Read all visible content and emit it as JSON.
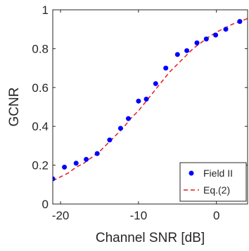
{
  "chart_data": {
    "type": "scatter",
    "xlabel": "Channel SNR [dB]",
    "ylabel": "GCNR",
    "xlim": [
      -21,
      4
    ],
    "ylim": [
      0,
      1
    ],
    "x_ticks": [
      -20,
      -10,
      0
    ],
    "x_tick_labels": [
      "-20",
      "-10",
      "0"
    ],
    "y_ticks": [
      0,
      0.2,
      0.4,
      0.6,
      0.8,
      1
    ],
    "y_tick_labels": [
      "0",
      "0.2",
      "0.4",
      "0.6",
      "0.8",
      "1"
    ],
    "grid": false,
    "legend_position": "bottom-right",
    "colors": {
      "field2": "#0000ff",
      "eq2": "#e41a1c"
    },
    "series": [
      {
        "name": "Field II",
        "style": "markers",
        "x": [
          -21,
          -19.5,
          -18,
          -16.7,
          -15.3,
          -13.7,
          -12.3,
          -11.3,
          -10,
          -9,
          -7.8,
          -6.5,
          -5,
          -3.8,
          -2.5,
          -1.3,
          -0.1,
          1.2,
          3
        ],
        "y": [
          0.13,
          0.19,
          0.21,
          0.23,
          0.26,
          0.33,
          0.39,
          0.44,
          0.53,
          0.54,
          0.62,
          0.7,
          0.77,
          0.79,
          0.83,
          0.85,
          0.87,
          0.9,
          0.94
        ]
      },
      {
        "name": "Eq.(2)",
        "style": "dashed-line",
        "x": [
          -21,
          -20,
          -19,
          -18,
          -17,
          -16,
          -15,
          -14,
          -13,
          -12,
          -11,
          -10,
          -9,
          -8,
          -7,
          -6,
          -5,
          -4,
          -3,
          -2,
          -1,
          0,
          1,
          2,
          3,
          4
        ],
        "y": [
          0.12,
          0.14,
          0.16,
          0.19,
          0.21,
          0.24,
          0.27,
          0.31,
          0.35,
          0.39,
          0.44,
          0.48,
          0.53,
          0.58,
          0.63,
          0.68,
          0.72,
          0.76,
          0.8,
          0.83,
          0.86,
          0.885,
          0.905,
          0.925,
          0.94,
          0.955
        ]
      }
    ]
  }
}
